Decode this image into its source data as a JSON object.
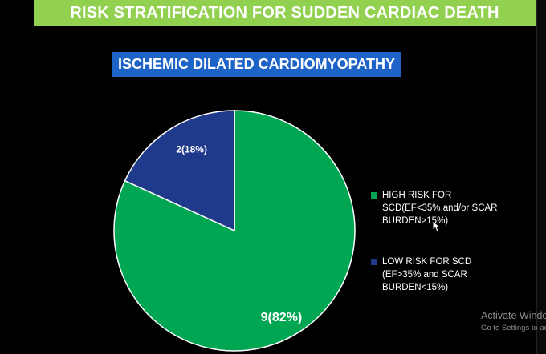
{
  "header": {
    "title": "RISK STRATIFICATION FOR SUDDEN CARDIAC DEATH"
  },
  "chart_data": {
    "type": "pie",
    "title": "ISCHEMIC DILATED CARDIOMYOPATHY",
    "slices": [
      {
        "label": "HIGH RISK FOR SCD(EF<35% and/or SCAR BURDEN>15%)",
        "value": 9,
        "percent": 82,
        "data_label": "9(82%)",
        "color": "#00a651"
      },
      {
        "label": "LOW RISK FOR SCD (EF>35% and SCAR BURDEN<15%)",
        "value": 2,
        "percent": 18,
        "data_label": "2(18%)",
        "color": "#1f3a8a"
      }
    ],
    "legend_position": "right"
  },
  "legend": {
    "items": [
      {
        "lines": [
          "HIGH RISK FOR",
          "SCD(EF<35%  and/or SCAR",
          "BURDEN>15%)"
        ],
        "color": "#00a651"
      },
      {
        "lines": [
          "LOW RISK FOR SCD",
          "(EF>35% and SCAR",
          "BURDEN<15%)"
        ],
        "color": "#1f3a8a"
      }
    ]
  },
  "watermark": {
    "line1": "Activate Windo",
    "line2": "Go to Settings to ac"
  }
}
